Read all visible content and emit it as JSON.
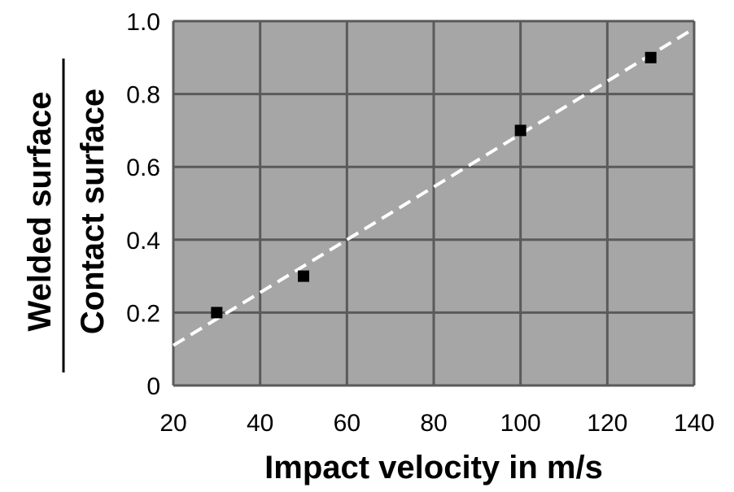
{
  "chart_data": {
    "type": "scatter",
    "xlabel": "Impact velocity in m/s",
    "ylabel_numerator": "Welded surface",
    "ylabel_denominator": "Contact surface",
    "xlim": [
      20,
      140
    ],
    "ylim": [
      0,
      1.0
    ],
    "xticks": [
      "20",
      "40",
      "60",
      "80",
      "100",
      "120",
      "140"
    ],
    "yticks": [
      "0",
      "0.2",
      "0.4",
      "0.6",
      "0.8",
      "1.0"
    ],
    "grid": true,
    "series": [
      {
        "marker": "square",
        "x": [
          30,
          50,
          100,
          130
        ],
        "y": [
          0.2,
          0.3,
          0.7,
          0.9
        ]
      }
    ],
    "trendline": {
      "style": "dashed",
      "x": [
        20,
        140
      ],
      "y": [
        0.11,
        0.98
      ]
    },
    "colors": {
      "plot_background": "#a6a6a6",
      "grid": "#5a5a5a",
      "marker": "#000000",
      "trendline": "#ffffff"
    }
  }
}
